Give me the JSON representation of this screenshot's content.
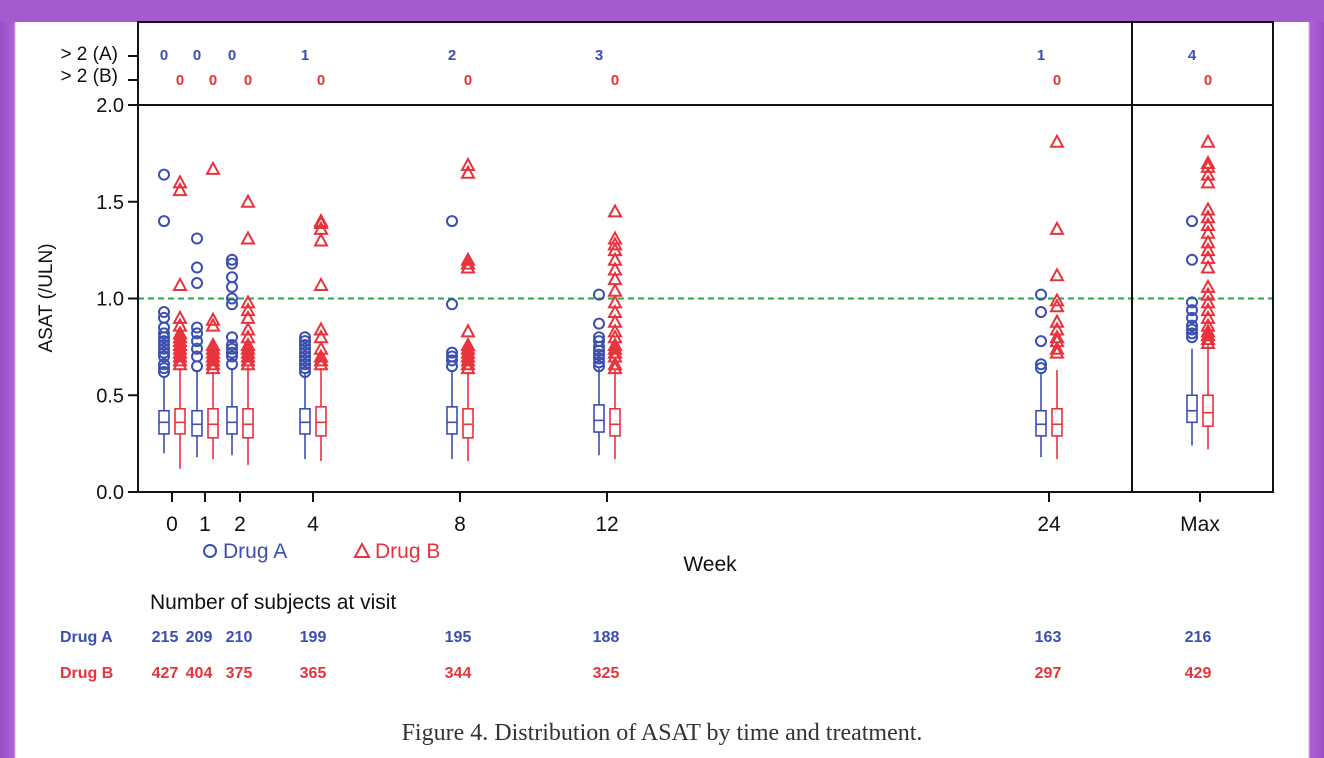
{
  "figure_caption": "Figure 4.  Distribution of ASAT by time and treatment.",
  "colors": {
    "drug_a": "#3a4fb0",
    "drug_b": "#e8323c",
    "reference_line": "#2aa84a",
    "axis": "#111111"
  },
  "chart_data": {
    "type": "box",
    "ylabel": "ASAT (/ULN)",
    "xlabel": "Week",
    "ylim": [
      0,
      2.0
    ],
    "yticks": [
      {
        "value": 0.0,
        "label": "0.0"
      },
      {
        "value": 0.5,
        "label": "0.5"
      },
      {
        "value": 1.0,
        "label": "1.0"
      },
      {
        "value": 1.5,
        "label": "1.5"
      },
      {
        "value": 2.0,
        "label": "2.0"
      }
    ],
    "reference_line": 1.0,
    "legend_placement": "bottom-left",
    "categories": [
      "0",
      "1",
      "2",
      "4",
      "8",
      "12",
      "24",
      "Max"
    ],
    "above_limit": {
      "row_labels": [
        "> 2 (A)",
        "> 2 (B)"
      ],
      "drug_a": [
        "0",
        "0",
        "0",
        "1",
        "2",
        "3",
        "1",
        "4"
      ],
      "drug_b": [
        "0",
        "0",
        "0",
        "0",
        "0",
        "0",
        "0",
        "0"
      ]
    },
    "series": [
      {
        "name": "Drug A",
        "marker": "circle",
        "boxes": [
          {
            "q1": 0.3,
            "median": 0.36,
            "q3": 0.42,
            "wlow": 0.2,
            "whigh": 0.6
          },
          {
            "q1": 0.29,
            "median": 0.35,
            "q3": 0.42,
            "wlow": 0.18,
            "whigh": 0.63
          },
          {
            "q1": 0.3,
            "median": 0.36,
            "q3": 0.44,
            "wlow": 0.19,
            "whigh": 0.64
          },
          {
            "q1": 0.3,
            "median": 0.36,
            "q3": 0.43,
            "wlow": 0.17,
            "whigh": 0.62
          },
          {
            "q1": 0.3,
            "median": 0.36,
            "q3": 0.44,
            "wlow": 0.17,
            "whigh": 0.63
          },
          {
            "q1": 0.31,
            "median": 0.37,
            "q3": 0.45,
            "wlow": 0.19,
            "whigh": 0.64
          },
          {
            "q1": 0.29,
            "median": 0.35,
            "q3": 0.42,
            "wlow": 0.18,
            "whigh": 0.62
          },
          {
            "q1": 0.36,
            "median": 0.42,
            "q3": 0.5,
            "wlow": 0.24,
            "whigh": 0.74
          }
        ],
        "outliers": [
          [
            0.62,
            0.64,
            0.66,
            0.7,
            0.72,
            0.74,
            0.76,
            0.78,
            0.8,
            0.82,
            0.85,
            0.9,
            0.93,
            1.4,
            1.64
          ],
          [
            0.65,
            0.7,
            0.74,
            0.78,
            0.82,
            0.85,
            1.08,
            1.16,
            1.31
          ],
          [
            0.66,
            0.7,
            0.72,
            0.74,
            0.76,
            0.8,
            0.97,
            1.0,
            1.06,
            1.11,
            1.18,
            1.2
          ],
          [
            0.62,
            0.64,
            0.66,
            0.68,
            0.7,
            0.72,
            0.74,
            0.76,
            0.78,
            0.8
          ],
          [
            0.65,
            0.68,
            0.7,
            0.72,
            0.97,
            1.4
          ],
          [
            0.65,
            0.67,
            0.69,
            0.71,
            0.73,
            0.75,
            0.78,
            0.8,
            0.87,
            1.02
          ],
          [
            0.64,
            0.66,
            0.78,
            0.93,
            1.02
          ],
          [
            0.8,
            0.82,
            0.84,
            0.86,
            0.9,
            0.94,
            0.98,
            1.2,
            1.4
          ]
        ]
      },
      {
        "name": "Drug B",
        "marker": "triangle",
        "boxes": [
          {
            "q1": 0.3,
            "median": 0.36,
            "q3": 0.43,
            "wlow": 0.12,
            "whigh": 0.64
          },
          {
            "q1": 0.28,
            "median": 0.35,
            "q3": 0.43,
            "wlow": 0.17,
            "whigh": 0.62
          },
          {
            "q1": 0.28,
            "median": 0.35,
            "q3": 0.43,
            "wlow": 0.14,
            "whigh": 0.65
          },
          {
            "q1": 0.29,
            "median": 0.36,
            "q3": 0.44,
            "wlow": 0.16,
            "whigh": 0.64
          },
          {
            "q1": 0.28,
            "median": 0.35,
            "q3": 0.43,
            "wlow": 0.16,
            "whigh": 0.62
          },
          {
            "q1": 0.29,
            "median": 0.35,
            "q3": 0.43,
            "wlow": 0.17,
            "whigh": 0.63
          },
          {
            "q1": 0.29,
            "median": 0.35,
            "q3": 0.43,
            "wlow": 0.17,
            "whigh": 0.63
          },
          {
            "q1": 0.34,
            "median": 0.41,
            "q3": 0.5,
            "wlow": 0.22,
            "whigh": 0.76
          }
        ],
        "outliers": [
          [
            0.66,
            0.68,
            0.7,
            0.72,
            0.74,
            0.76,
            0.78,
            0.8,
            0.82,
            0.86,
            0.9,
            1.07,
            1.56,
            1.6
          ],
          [
            0.64,
            0.66,
            0.68,
            0.7,
            0.72,
            0.74,
            0.76,
            0.86,
            0.89,
            1.67
          ],
          [
            0.66,
            0.68,
            0.7,
            0.72,
            0.74,
            0.76,
            0.8,
            0.84,
            0.9,
            0.94,
            0.98,
            1.31,
            1.5
          ],
          [
            0.66,
            0.68,
            0.7,
            0.74,
            0.8,
            0.84,
            1.07,
            1.3,
            1.36,
            1.39,
            1.4
          ],
          [
            0.64,
            0.66,
            0.68,
            0.7,
            0.72,
            0.74,
            0.76,
            0.83,
            1.16,
            1.18,
            1.2,
            1.65,
            1.69
          ],
          [
            0.64,
            0.66,
            0.7,
            0.72,
            0.74,
            0.76,
            0.8,
            0.83,
            0.88,
            0.93,
            0.98,
            1.04,
            1.1,
            1.15,
            1.2,
            1.25,
            1.28,
            1.31,
            1.45
          ],
          [
            0.72,
            0.74,
            0.78,
            0.8,
            0.84,
            0.88,
            0.96,
            0.99,
            1.12,
            1.36,
            1.81
          ],
          [
            0.77,
            0.79,
            0.81,
            0.83,
            0.86,
            0.9,
            0.94,
            0.98,
            1.02,
            1.06,
            1.16,
            1.21,
            1.25,
            1.29,
            1.34,
            1.38,
            1.42,
            1.46,
            1.6,
            1.64,
            1.68,
            1.7,
            1.81
          ]
        ]
      }
    ],
    "subjects_table": {
      "title": "Number of subjects at visit",
      "rows": [
        {
          "label": "Drug A",
          "values": [
            "215",
            "209",
            "210",
            "199",
            "195",
            "188",
            "163",
            "216"
          ]
        },
        {
          "label": "Drug B",
          "values": [
            "427",
            "404",
            "375",
            "365",
            "344",
            "325",
            "297",
            "429"
          ]
        }
      ]
    }
  }
}
